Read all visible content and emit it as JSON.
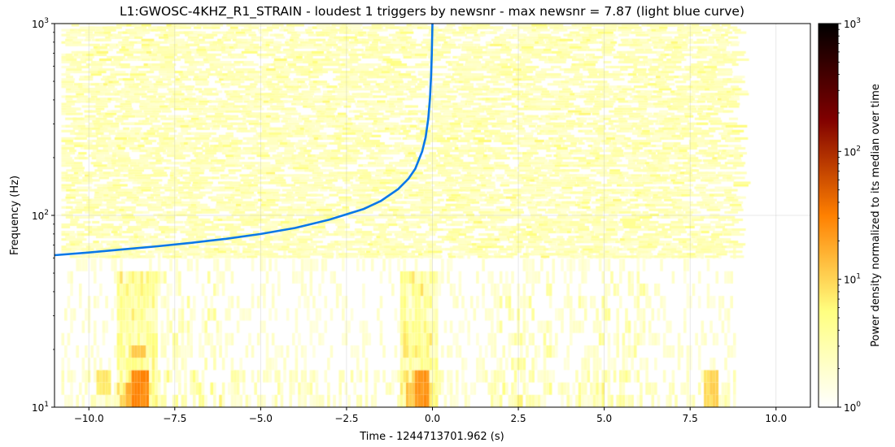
{
  "chart_data": {
    "type": "heatmap",
    "title": "L1:GWOSC-4KHZ_R1_STRAIN - loudest 1 triggers by newsnr - max newsnr = 7.87 (light blue curve)",
    "xlabel": "Time - 1244713701.962 (s)",
    "ylabel": "Frequency (Hz)",
    "xlim": [
      -11,
      11
    ],
    "ylim": [
      10,
      1000
    ],
    "yscale": "log",
    "x_ticks": [
      -10,
      -7.5,
      -5,
      -2.5,
      0,
      2.5,
      5,
      7.5,
      10
    ],
    "x_tick_labels": [
      "−10.0",
      "−7.5",
      "−5.0",
      "−2.5",
      "0.0",
      "2.5",
      "5.0",
      "7.5",
      "10.0"
    ],
    "y_ticks": [
      10,
      100,
      1000
    ],
    "y_tick_labels": [
      {
        "base": "10",
        "exp": "1"
      },
      {
        "base": "10",
        "exp": "2"
      },
      {
        "base": "10",
        "exp": "3"
      }
    ],
    "grid": true,
    "data_extent": {
      "t_start": -10.8,
      "t_end": 8.8
    },
    "colorbar": {
      "label": "Power density normalized to its median over time",
      "scale": "log",
      "range": [
        1,
        1000
      ],
      "ticks": [
        1,
        10,
        100,
        1000
      ],
      "tick_labels": [
        {
          "base": "10",
          "exp": "0"
        },
        {
          "base": "10",
          "exp": "1"
        },
        {
          "base": "10",
          "exp": "2"
        },
        {
          "base": "10",
          "exp": "3"
        }
      ],
      "colormap": "afmhot_r"
    },
    "trigger_curve": {
      "color": "#0a78e8",
      "merger_time": 0.0,
      "points": [
        {
          "x": -11.0,
          "y": 62
        },
        {
          "x": -10.0,
          "y": 64
        },
        {
          "x": -9.0,
          "y": 66.5
        },
        {
          "x": -8.0,
          "y": 69
        },
        {
          "x": -7.0,
          "y": 72
        },
        {
          "x": -6.0,
          "y": 75.5
        },
        {
          "x": -5.0,
          "y": 80
        },
        {
          "x": -4.0,
          "y": 86
        },
        {
          "x": -3.0,
          "y": 95
        },
        {
          "x": -2.0,
          "y": 108
        },
        {
          "x": -1.5,
          "y": 119
        },
        {
          "x": -1.0,
          "y": 137
        },
        {
          "x": -0.7,
          "y": 155
        },
        {
          "x": -0.5,
          "y": 175
        },
        {
          "x": -0.3,
          "y": 215
        },
        {
          "x": -0.2,
          "y": 255
        },
        {
          "x": -0.12,
          "y": 320
        },
        {
          "x": -0.07,
          "y": 410
        },
        {
          "x": -0.04,
          "y": 530
        },
        {
          "x": -0.02,
          "y": 700
        },
        {
          "x": 0.0,
          "y": 1000
        }
      ]
    }
  }
}
